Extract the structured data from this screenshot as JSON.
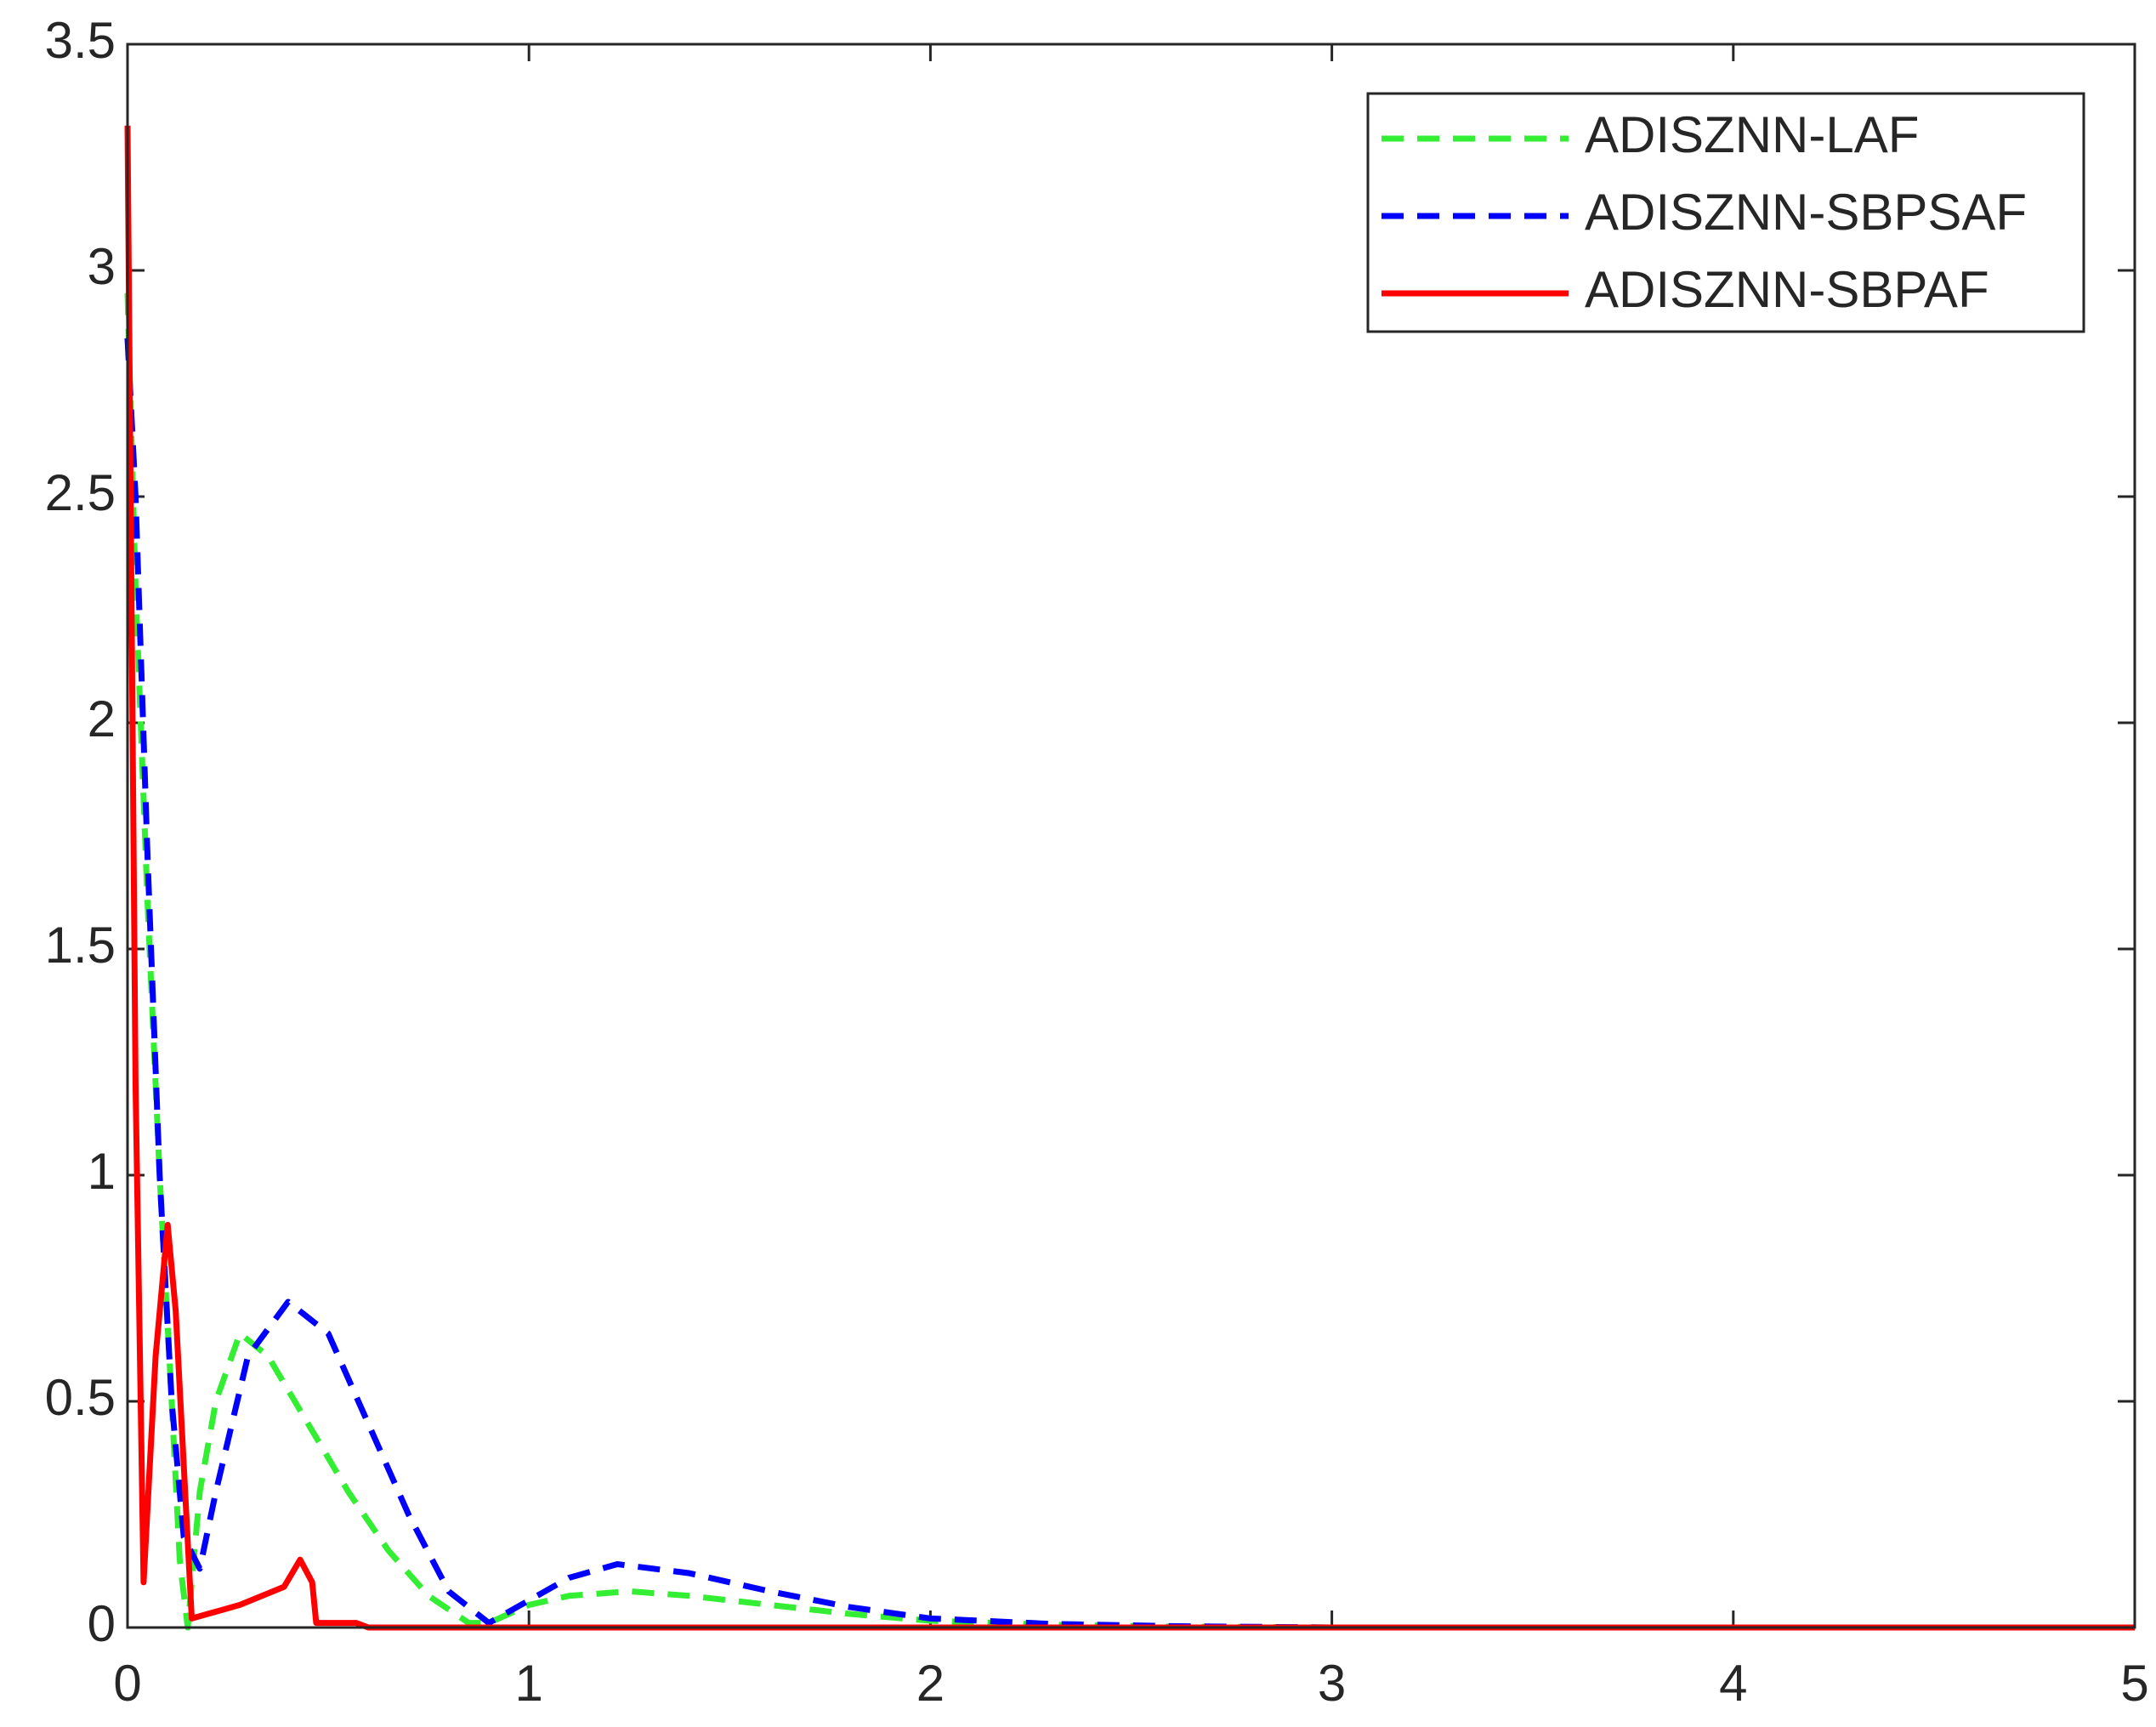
{
  "chart_data": {
    "type": "line",
    "xlim": [
      0,
      5
    ],
    "xticks": [
      0,
      1,
      2,
      3,
      4,
      5
    ],
    "ylim": [
      0,
      3.5
    ],
    "yticks": [
      0,
      0.5,
      1,
      1.5,
      2,
      2.5,
      3,
      3.5
    ],
    "legend": "upper right",
    "box": true,
    "series": [
      {
        "name": "ADISZNN-LAF",
        "color": "#33ee33",
        "style": "dashed",
        "x": [
          0,
          0.02,
          0.05,
          0.08,
          0.11,
          0.13,
          0.15,
          0.18,
          0.22,
          0.28,
          0.35,
          0.45,
          0.55,
          0.65,
          0.75,
          0.85,
          0.9,
          1.0,
          1.1,
          1.25,
          1.4,
          1.6,
          1.8,
          2.0,
          2.3,
          2.6,
          3,
          4,
          5
        ],
        "values": [
          2.95,
          2.3,
          1.6,
          1.0,
          0.5,
          0.15,
          0,
          0.3,
          0.5,
          0.65,
          0.6,
          0.45,
          0.3,
          0.17,
          0.07,
          0.01,
          0.01,
          0.05,
          0.07,
          0.08,
          0.07,
          0.05,
          0.03,
          0.015,
          0.006,
          0.002,
          0,
          0,
          0
        ]
      },
      {
        "name": "ADISZNN-SBPSAF",
        "color": "#0000ff",
        "style": "dashed",
        "x": [
          0,
          0.02,
          0.05,
          0.08,
          0.11,
          0.14,
          0.18,
          0.22,
          0.3,
          0.4,
          0.5,
          0.6,
          0.7,
          0.8,
          0.9,
          1.0,
          1.1,
          1.22,
          1.4,
          1.6,
          1.8,
          2.0,
          2.3,
          2.6,
          3,
          4,
          5
        ],
        "values": [
          2.85,
          2.5,
          1.7,
          1.0,
          0.5,
          0.2,
          0.13,
          0.3,
          0.6,
          0.72,
          0.65,
          0.45,
          0.25,
          0.08,
          0.01,
          0.06,
          0.11,
          0.14,
          0.12,
          0.08,
          0.045,
          0.02,
          0.008,
          0.003,
          0,
          0,
          0
        ]
      },
      {
        "name": "ADISZNN-SBPAF",
        "color": "#ff0000",
        "style": "solid",
        "x": [
          0,
          0.02,
          0.04,
          0.07,
          0.1,
          0.12,
          0.16,
          0.2,
          0.28,
          0.39,
          0.43,
          0.46,
          0.47,
          0.52,
          0.57,
          0.6,
          1,
          2,
          3,
          4,
          5
        ],
        "values": [
          3.32,
          1.2,
          0.1,
          0.6,
          0.89,
          0.7,
          0.02,
          0.03,
          0.05,
          0.09,
          0.15,
          0.1,
          0.01,
          0.01,
          0.01,
          0,
          0,
          0,
          0,
          0,
          0
        ]
      }
    ]
  }
}
